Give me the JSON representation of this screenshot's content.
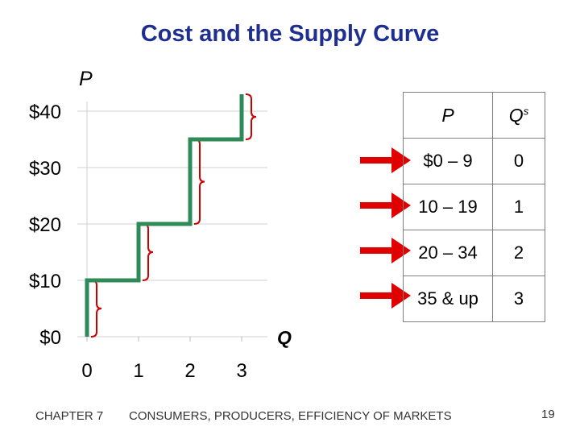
{
  "slide": {
    "title": "Cost and the Supply Curve",
    "footer_chapter": "CHAPTER 7",
    "footer_title": "CONSUMERS, PRODUCERS, EFFICIENCY OF MARKETS",
    "page_number": "19"
  },
  "colors": {
    "title": "#1f2f8f",
    "supply_curve": "#2e8b57",
    "brace": "#cc0000",
    "arrow": "#e00000"
  },
  "table": {
    "header_p": "P",
    "header_q": "Q",
    "header_q_sup": "s",
    "rows": [
      {
        "price": "$0 – 9",
        "qs": "0"
      },
      {
        "price": "10 – 19",
        "qs": "1"
      },
      {
        "price": "20 – 34",
        "qs": "2"
      },
      {
        "price": "35 & up",
        "qs": "3"
      }
    ]
  },
  "chart_data": {
    "type": "line",
    "title": "",
    "xlabel": "Q",
    "ylabel": "P",
    "xlim": [
      0,
      3
    ],
    "ylim": [
      0,
      40
    ],
    "x_ticks": [
      0,
      1,
      2,
      3
    ],
    "y_ticks": [
      0,
      10,
      20,
      30,
      40
    ],
    "x_tick_labels": [
      "0",
      "1",
      "2",
      "3"
    ],
    "y_tick_labels": [
      "$0",
      "$10",
      "$20",
      "$30",
      "$40"
    ],
    "grid": true,
    "series": [
      {
        "x": [
          0,
          0,
          1,
          1,
          2,
          2,
          3,
          3
        ],
        "y": [
          0,
          10,
          10,
          20,
          20,
          35,
          35,
          43
        ]
      }
    ],
    "brace_ranges": [
      [
        0,
        10
      ],
      [
        10,
        20
      ],
      [
        20,
        35
      ],
      [
        35,
        43
      ]
    ]
  }
}
